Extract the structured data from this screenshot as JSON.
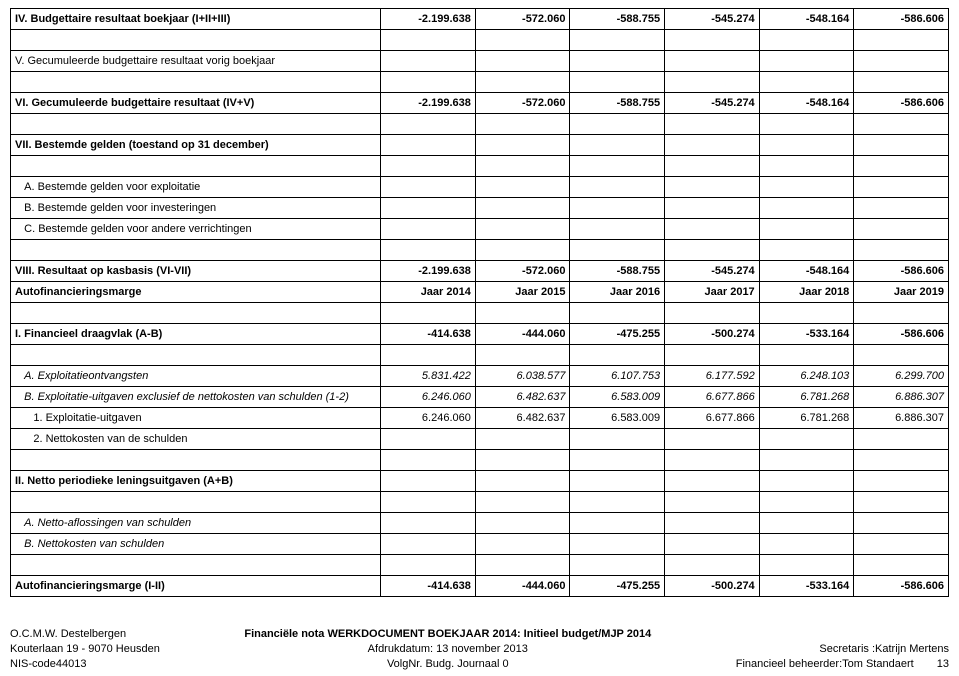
{
  "table": {
    "columns_numeric_count": 6,
    "rows": [
      {
        "style": "bold",
        "label": "IV. Budgettaire resultaat boekjaar (I+II+III)",
        "values": [
          "-2.199.638",
          "-572.060",
          "-588.755",
          "-545.274",
          "-548.164",
          "-586.606"
        ]
      },
      {
        "style": "",
        "label": "",
        "values": [
          "",
          "",
          "",
          "",
          "",
          ""
        ]
      },
      {
        "style": "",
        "label": "V. Gecumuleerde budgettaire resultaat vorig boekjaar",
        "values": [
          "",
          "",
          "",
          "",
          "",
          ""
        ]
      },
      {
        "style": "",
        "label": "",
        "values": [
          "",
          "",
          "",
          "",
          "",
          ""
        ]
      },
      {
        "style": "bold",
        "label": "VI. Gecumuleerde budgettaire resultaat (IV+V)",
        "values": [
          "-2.199.638",
          "-572.060",
          "-588.755",
          "-545.274",
          "-548.164",
          "-586.606"
        ]
      },
      {
        "style": "",
        "label": "",
        "values": [
          "",
          "",
          "",
          "",
          "",
          ""
        ]
      },
      {
        "style": "bold",
        "label": "VII. Bestemde gelden (toestand op 31 december)",
        "values": [
          "",
          "",
          "",
          "",
          "",
          ""
        ]
      },
      {
        "style": "",
        "label": "",
        "values": [
          "",
          "",
          "",
          "",
          "",
          ""
        ]
      },
      {
        "style": "",
        "label": "   A. Bestemde gelden voor exploitatie",
        "values": [
          "",
          "",
          "",
          "",
          "",
          ""
        ]
      },
      {
        "style": "",
        "label": "   B. Bestemde gelden voor investeringen",
        "values": [
          "",
          "",
          "",
          "",
          "",
          ""
        ]
      },
      {
        "style": "",
        "label": "   C. Bestemde gelden voor andere verrichtingen",
        "values": [
          "",
          "",
          "",
          "",
          "",
          ""
        ]
      },
      {
        "style": "",
        "label": "",
        "values": [
          "",
          "",
          "",
          "",
          "",
          ""
        ]
      },
      {
        "style": "bold",
        "label": "VIII. Resultaat op kasbasis (VI-VII)",
        "values": [
          "-2.199.638",
          "-572.060",
          "-588.755",
          "-545.274",
          "-548.164",
          "-586.606"
        ]
      },
      {
        "style": "bold",
        "label": "Autofinancieringsmarge",
        "values": [
          "Jaar 2014",
          "Jaar 2015",
          "Jaar 2016",
          "Jaar 2017",
          "Jaar 2018",
          "Jaar 2019"
        ]
      },
      {
        "style": "",
        "label": "",
        "values": [
          "",
          "",
          "",
          "",
          "",
          ""
        ]
      },
      {
        "style": "bold",
        "label": "I. Financieel draagvlak (A-B)",
        "values": [
          "-414.638",
          "-444.060",
          "-475.255",
          "-500.274",
          "-533.164",
          "-586.606"
        ]
      },
      {
        "style": "",
        "label": "",
        "values": [
          "",
          "",
          "",
          "",
          "",
          ""
        ]
      },
      {
        "style": "italic",
        "label": "   A. Exploitatieontvangsten",
        "values": [
          "5.831.422",
          "6.038.577",
          "6.107.753",
          "6.177.592",
          "6.248.103",
          "6.299.700"
        ]
      },
      {
        "style": "italic",
        "label": "   B. Exploitatie-uitgaven exclusief de nettokosten van schulden (1-2)",
        "values": [
          "6.246.060",
          "6.482.637",
          "6.583.009",
          "6.677.866",
          "6.781.268",
          "6.886.307"
        ]
      },
      {
        "style": "",
        "label": "      1. Exploitatie-uitgaven",
        "values": [
          "6.246.060",
          "6.482.637",
          "6.583.009",
          "6.677.866",
          "6.781.268",
          "6.886.307"
        ]
      },
      {
        "style": "",
        "label": "      2. Nettokosten van de schulden",
        "values": [
          "",
          "",
          "",
          "",
          "",
          ""
        ]
      },
      {
        "style": "",
        "label": "",
        "values": [
          "",
          "",
          "",
          "",
          "",
          ""
        ]
      },
      {
        "style": "bold",
        "label": "II. Netto periodieke leningsuitgaven (A+B)",
        "values": [
          "",
          "",
          "",
          "",
          "",
          ""
        ]
      },
      {
        "style": "",
        "label": "",
        "values": [
          "",
          "",
          "",
          "",
          "",
          ""
        ]
      },
      {
        "style": "italic",
        "label": "   A. Netto-aflossingen van schulden",
        "values": [
          "",
          "",
          "",
          "",
          "",
          ""
        ]
      },
      {
        "style": "italic",
        "label": "   B. Nettokosten van schulden",
        "values": [
          "",
          "",
          "",
          "",
          "",
          ""
        ]
      },
      {
        "style": "",
        "label": "",
        "values": [
          "",
          "",
          "",
          "",
          "",
          ""
        ]
      },
      {
        "style": "bold",
        "label": "Autofinancieringsmarge (I-II)",
        "values": [
          "-414.638",
          "-444.060",
          "-475.255",
          "-500.274",
          "-533.164",
          "-586.606"
        ]
      }
    ]
  },
  "footer": {
    "left": [
      "O.C.M.W. Destelbergen",
      "Kouterlaan 19 - 9070 Heusden",
      "NIS-code44013"
    ],
    "center_title": "Financiële nota WERKDOCUMENT BOEKJAAR 2014: Initieel budget/MJP 2014",
    "center_lines": [
      "Afdrukdatum: 13 november 2013",
      "VolgNr. Budg. Journaal 0"
    ],
    "right": [
      "",
      "Secretaris :Katrijn Mertens",
      "Financieel beheerder:Tom Standaert"
    ],
    "page_number": "13"
  }
}
